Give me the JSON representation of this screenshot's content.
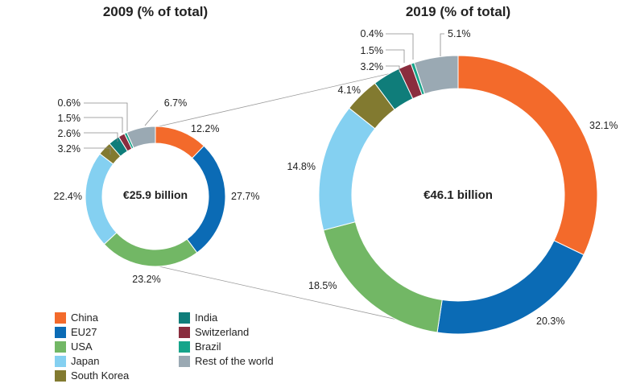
{
  "colors": {
    "China": "#f36a2b",
    "EU27": "#0b6bb5",
    "USA": "#72b765",
    "Japan": "#84d0f1",
    "South Korea": "#827a30",
    "India": "#0f7d7a",
    "Switzerland": "#8a2d3e",
    "Brazil": "#16a48a",
    "Rest of the world": "#9aa9b3"
  },
  "legend": [
    "China",
    "EU27",
    "USA",
    "Japan",
    "South Korea",
    "India",
    "Switzerland",
    "Brazil",
    "Rest of the world"
  ],
  "chart_data": [
    {
      "type": "pie",
      "variant": "donut",
      "title": "2009 (% of total)",
      "total_label": "€25.9 billion",
      "categories": [
        "China",
        "EU27",
        "USA",
        "Japan",
        "South Korea",
        "India",
        "Switzerland",
        "Brazil",
        "Rest of the world"
      ],
      "values": [
        12.2,
        27.7,
        23.2,
        22.4,
        3.2,
        2.6,
        1.5,
        0.6,
        6.7
      ],
      "labels": [
        "12.2%",
        "27.7%",
        "23.2%",
        "22.4%",
        "3.2%",
        "2.6%",
        "1.5%",
        "0.6%",
        "6.7%"
      ]
    },
    {
      "type": "pie",
      "variant": "donut",
      "title": "2019 (% of total)",
      "total_label": "€46.1 billion",
      "categories": [
        "China",
        "EU27",
        "USA",
        "Japan",
        "South Korea",
        "India",
        "Switzerland",
        "Brazil",
        "Rest of the world"
      ],
      "values": [
        32.1,
        20.3,
        18.5,
        14.8,
        4.1,
        3.2,
        1.5,
        0.4,
        5.1
      ],
      "labels": [
        "32.1%",
        "20.3%",
        "18.5%",
        "14.8%",
        "4.1%",
        "3.2%",
        "1.5%",
        "0.4%",
        "5.1%"
      ]
    }
  ]
}
